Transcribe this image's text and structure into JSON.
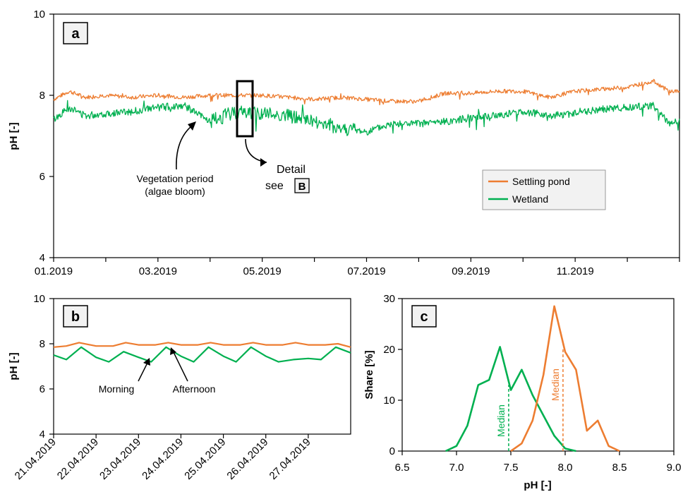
{
  "colors": {
    "settling_pond": "#ED7D31",
    "wetland": "#00B050",
    "axis": "#000000"
  },
  "chart_data": [
    {
      "panel": "a",
      "type": "line",
      "ylabel": "pH [-]",
      "ylim": [
        4,
        10
      ],
      "yticks": [
        "4",
        "6",
        "8",
        "10"
      ],
      "xlim_month": [
        0,
        12
      ],
      "xtick_labels": [
        "01.2019",
        "03.2019",
        "05.2019",
        "07.2019",
        "09.2019",
        "11.2019"
      ],
      "xtick_months": [
        0,
        2,
        4,
        6,
        8,
        10
      ],
      "legend": {
        "position": "bottom-right",
        "entries": [
          "Settling pond",
          "Wetland"
        ]
      },
      "annotations": {
        "vegetation": [
          "Vegetation period",
          "(algae bloom)"
        ],
        "detail": [
          "Detail",
          "see"
        ],
        "detail_ref": "B"
      },
      "series": [
        {
          "name": "Settling pond",
          "month": [
            0,
            0.3,
            0.6,
            1.0,
            1.5,
            2.0,
            2.5,
            3.0,
            3.5,
            4.0,
            4.5,
            5.0,
            5.5,
            6.0,
            6.5,
            7.0,
            7.5,
            8.0,
            8.5,
            9.0,
            9.5,
            10.0,
            10.5,
            11.0,
            11.5,
            11.8,
            12.0
          ],
          "values": [
            7.9,
            8.1,
            7.95,
            8.0,
            7.95,
            8.0,
            7.95,
            8.0,
            8.0,
            8.0,
            7.95,
            7.9,
            7.95,
            7.9,
            7.85,
            7.85,
            8.05,
            8.05,
            8.1,
            8.1,
            7.95,
            8.1,
            8.15,
            8.2,
            8.35,
            8.1,
            8.1
          ]
        },
        {
          "name": "Wetland",
          "month": [
            0,
            0.3,
            0.6,
            1.0,
            1.5,
            2.0,
            2.5,
            3.0,
            3.5,
            4.0,
            4.5,
            5.0,
            5.5,
            6.0,
            6.5,
            7.0,
            7.5,
            8.0,
            8.5,
            9.0,
            9.5,
            10.0,
            10.5,
            11.0,
            11.5,
            11.8,
            12.0
          ],
          "values": [
            7.4,
            7.7,
            7.5,
            7.55,
            7.6,
            7.7,
            7.75,
            7.35,
            7.6,
            7.55,
            7.5,
            7.35,
            7.2,
            7.1,
            7.3,
            7.3,
            7.35,
            7.45,
            7.5,
            7.6,
            7.5,
            7.55,
            7.65,
            7.7,
            7.75,
            7.3,
            7.35
          ]
        }
      ]
    },
    {
      "panel": "b",
      "type": "line",
      "ylabel": "pH [-]",
      "ylim": [
        4,
        10
      ],
      "yticks": [
        "4",
        "6",
        "8",
        "10"
      ],
      "xlim_day": [
        21,
        28
      ],
      "xtick_labels": [
        "21.04.2019",
        "22.04.2019",
        "23.04.2019",
        "24.04.2019",
        "25.04.2019",
        "26.04.2019",
        "27.04.2019"
      ],
      "xtick_days": [
        21,
        22,
        23,
        24,
        25,
        26,
        27
      ],
      "annotations": {
        "morning": "Morning",
        "afternoon": "Afternoon"
      },
      "series": [
        {
          "name": "Settling pond",
          "day": [
            21.0,
            21.3,
            21.6,
            22.0,
            22.4,
            22.7,
            23.0,
            23.4,
            23.7,
            24.0,
            24.4,
            24.7,
            25.0,
            25.4,
            25.7,
            26.0,
            26.4,
            26.7,
            27.0,
            27.4,
            27.7,
            28.0
          ],
          "values": [
            7.85,
            7.9,
            8.05,
            7.9,
            7.9,
            8.05,
            7.95,
            7.95,
            8.05,
            7.95,
            7.95,
            8.05,
            7.95,
            7.95,
            8.05,
            7.95,
            7.95,
            8.05,
            7.95,
            7.95,
            8.0,
            7.85
          ]
        },
        {
          "name": "Wetland",
          "day": [
            21.0,
            21.3,
            21.65,
            22.0,
            22.3,
            22.65,
            23.0,
            23.3,
            23.65,
            24.0,
            24.3,
            24.65,
            25.0,
            25.3,
            25.65,
            26.0,
            26.3,
            26.65,
            27.0,
            27.3,
            27.65,
            28.0
          ],
          "values": [
            7.5,
            7.3,
            7.85,
            7.4,
            7.2,
            7.65,
            7.4,
            7.2,
            7.85,
            7.45,
            7.2,
            7.85,
            7.45,
            7.2,
            7.85,
            7.45,
            7.2,
            7.3,
            7.35,
            7.3,
            7.85,
            7.6
          ]
        }
      ]
    },
    {
      "panel": "c",
      "type": "line",
      "xlabel": "pH [-]",
      "ylabel": "Share [%]",
      "xlim": [
        6.5,
        9.0
      ],
      "ylim": [
        0,
        30
      ],
      "xticks": [
        "6.5",
        "7.0",
        "7.5",
        "8.0",
        "8.5",
        "9.0"
      ],
      "yticks": [
        "0",
        "10",
        "20",
        "30"
      ],
      "median_label": "Median",
      "medians": {
        "Wetland": 7.48,
        "Settling pond": 7.98
      },
      "series": [
        {
          "name": "Wetland",
          "x": [
            6.9,
            7.0,
            7.1,
            7.2,
            7.3,
            7.4,
            7.5,
            7.6,
            7.7,
            7.8,
            7.9,
            8.0,
            8.1
          ],
          "values": [
            0,
            1,
            5,
            13,
            14,
            20.5,
            12,
            16,
            11,
            7,
            3,
            0.5,
            0
          ]
        },
        {
          "name": "Settling pond",
          "x": [
            7.5,
            7.6,
            7.7,
            7.8,
            7.9,
            8.0,
            8.1,
            8.2,
            8.3,
            8.4,
            8.5
          ],
          "values": [
            0,
            1.5,
            6,
            15,
            28.5,
            19.5,
            16,
            4,
            6,
            1,
            0
          ]
        }
      ]
    }
  ]
}
